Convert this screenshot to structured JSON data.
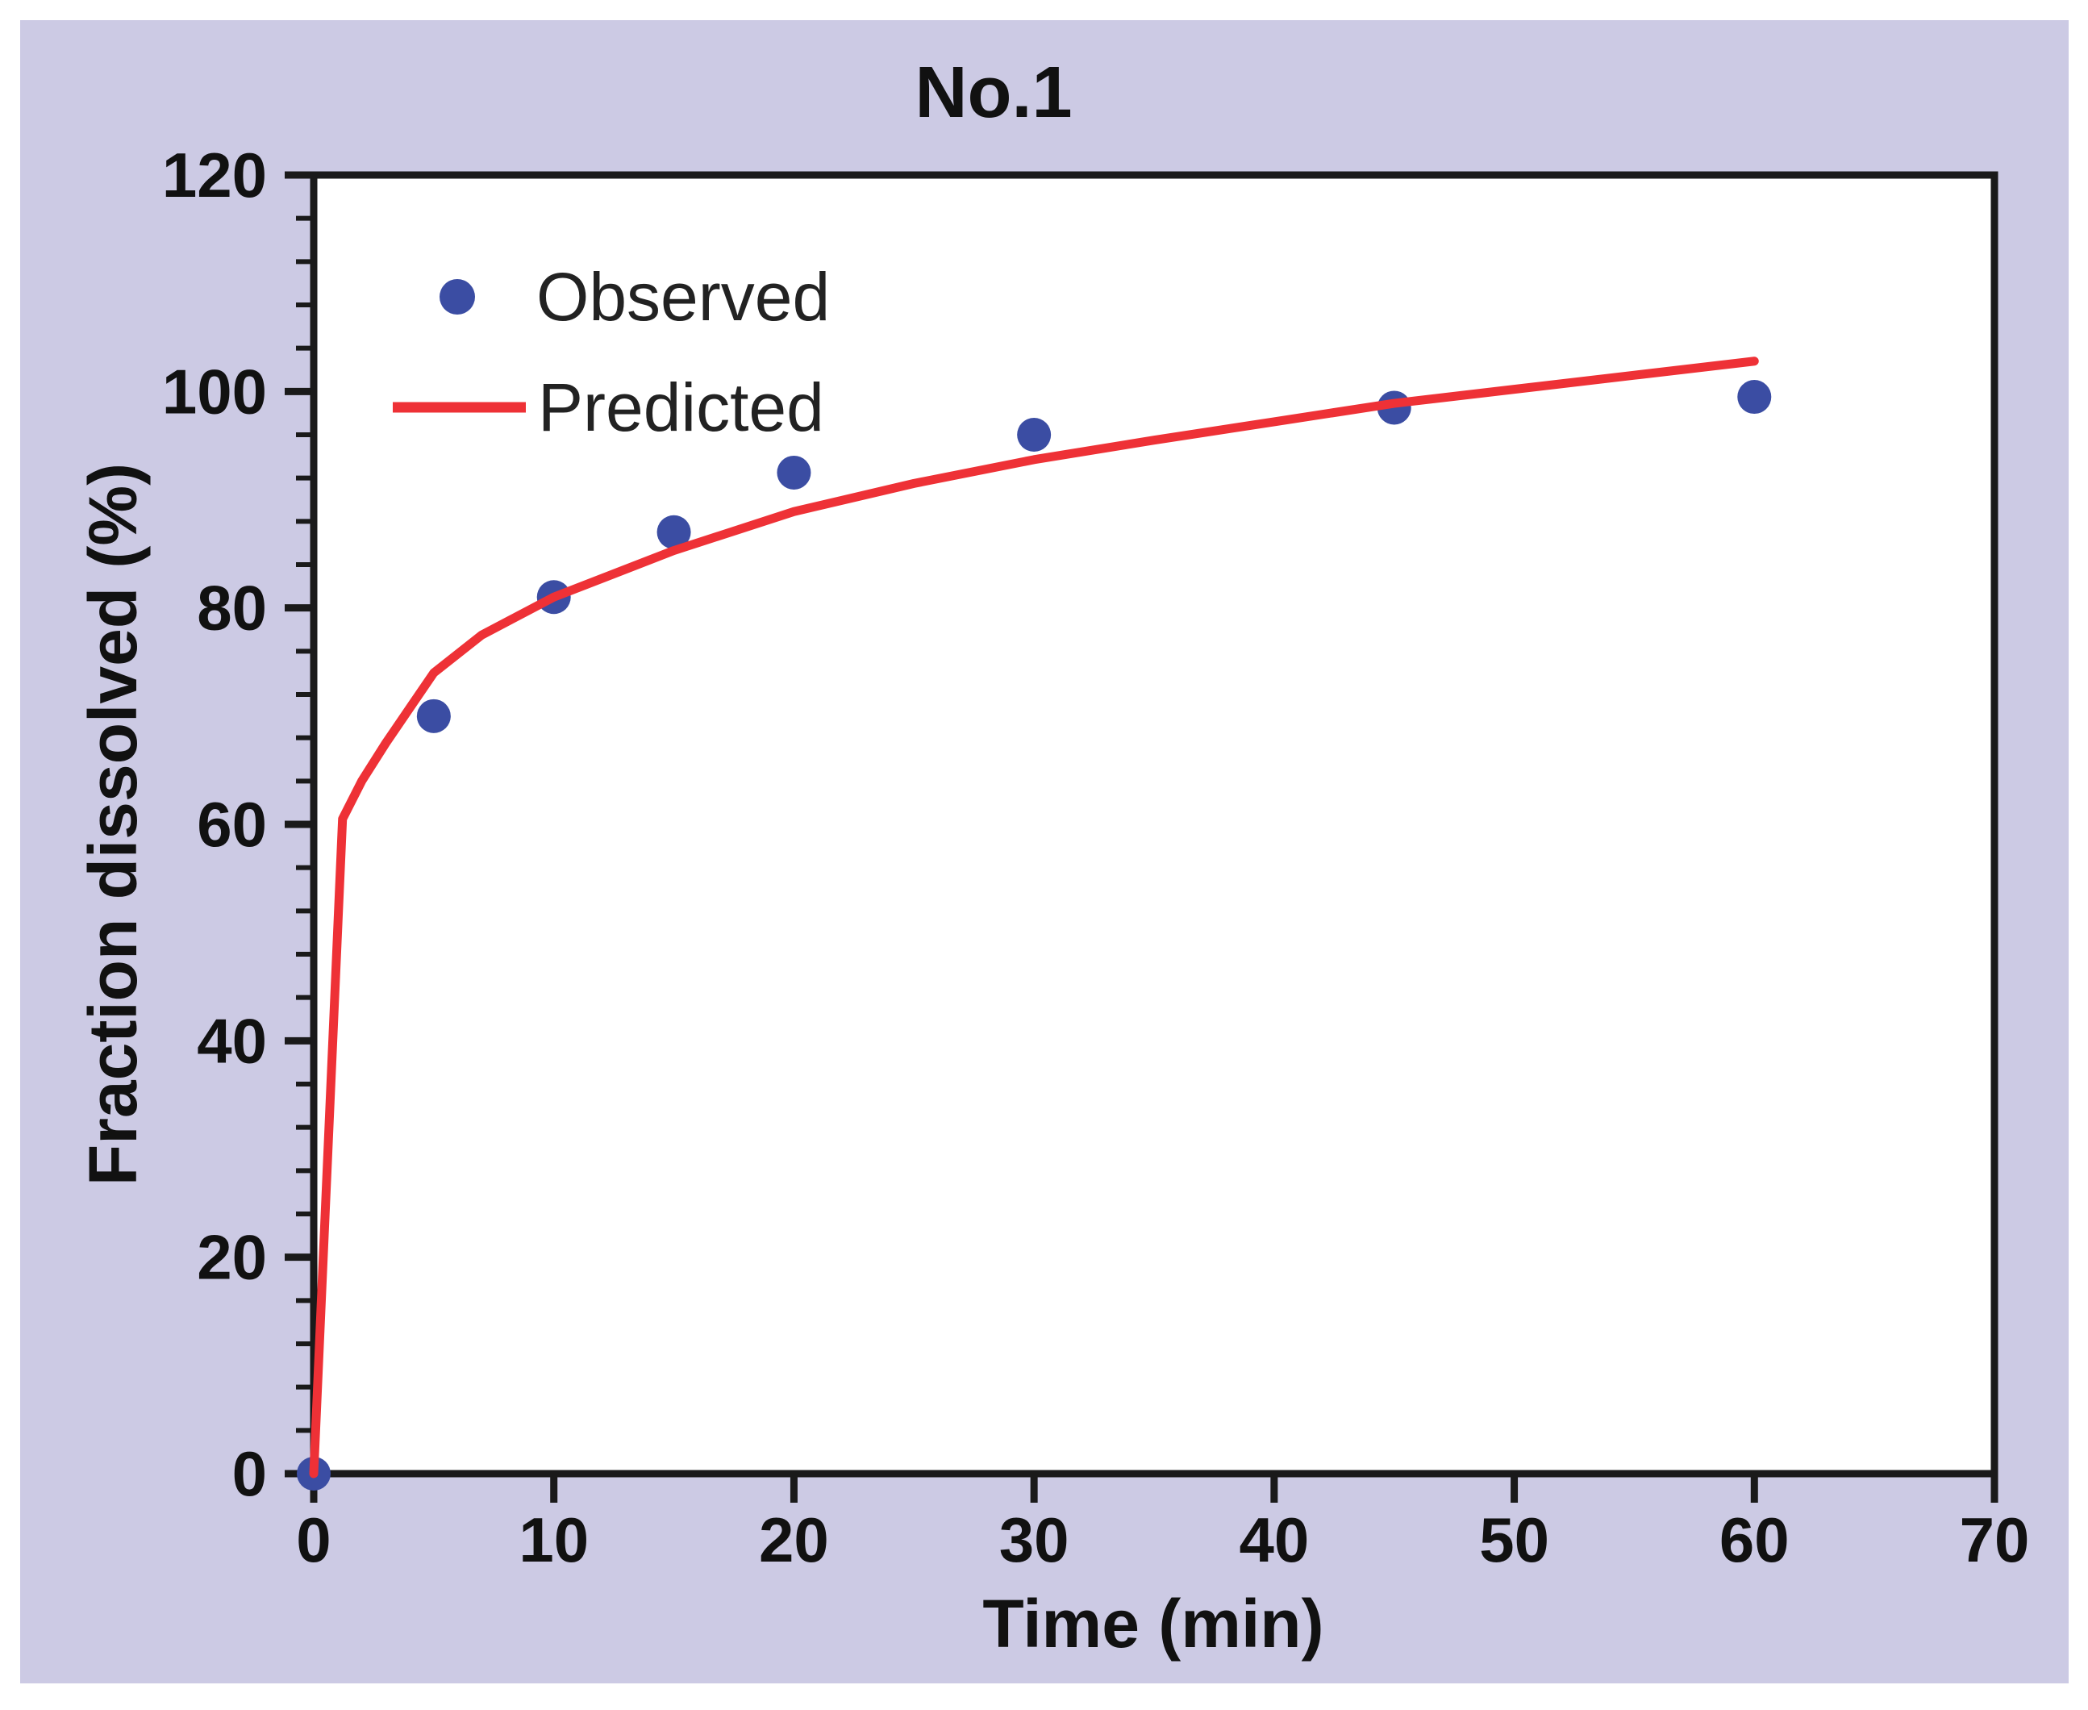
{
  "title": "No.1",
  "colors": {
    "panel_bg": "#cccae4",
    "plot_bg": "#ffffff",
    "axis": "#1a1a1a",
    "text": "#111111",
    "observed_blue": "#3b4da3",
    "predicted_red": "#ee3136"
  },
  "legend": {
    "items": [
      {
        "label": "Observed",
        "marker": "dot"
      },
      {
        "label": "Predicted",
        "marker": "line"
      }
    ]
  },
  "chart_data": {
    "type": "scatter",
    "title": "No.1",
    "xlabel": "Time (min)",
    "ylabel": "Fraction dissolved (%)",
    "xlim": [
      0,
      70
    ],
    "ylim": [
      0,
      120
    ],
    "x_ticks": [
      0,
      10,
      20,
      30,
      40,
      50,
      60,
      70
    ],
    "y_ticks": [
      0,
      20,
      40,
      60,
      80,
      100,
      120
    ],
    "y_minor_per_major": 5,
    "x_minor_per_major": 1,
    "grid": false,
    "legend_position": "top-left-inside",
    "series": [
      {
        "name": "Observed",
        "type": "scatter",
        "color": "#3b4da3",
        "points": [
          [
            0,
            0
          ],
          [
            5,
            70
          ],
          [
            10,
            81
          ],
          [
            15,
            87
          ],
          [
            20,
            92.5
          ],
          [
            30,
            96
          ],
          [
            45,
            98.5
          ],
          [
            60,
            99.5
          ]
        ]
      },
      {
        "name": "Predicted",
        "type": "line",
        "color": "#ee3136",
        "points": [
          [
            0,
            0
          ],
          [
            1.2,
            60.5
          ],
          [
            2,
            64
          ],
          [
            3,
            67.5
          ],
          [
            5,
            74
          ],
          [
            7,
            77.5
          ],
          [
            10,
            81
          ],
          [
            15,
            85.3
          ],
          [
            20,
            88.9
          ],
          [
            25,
            91.5
          ],
          [
            30,
            93.7
          ],
          [
            35,
            95.5
          ],
          [
            40,
            97.2
          ],
          [
            45,
            98.9
          ],
          [
            50,
            100.2
          ],
          [
            55,
            101.5
          ],
          [
            60,
            102.8
          ]
        ]
      }
    ]
  }
}
